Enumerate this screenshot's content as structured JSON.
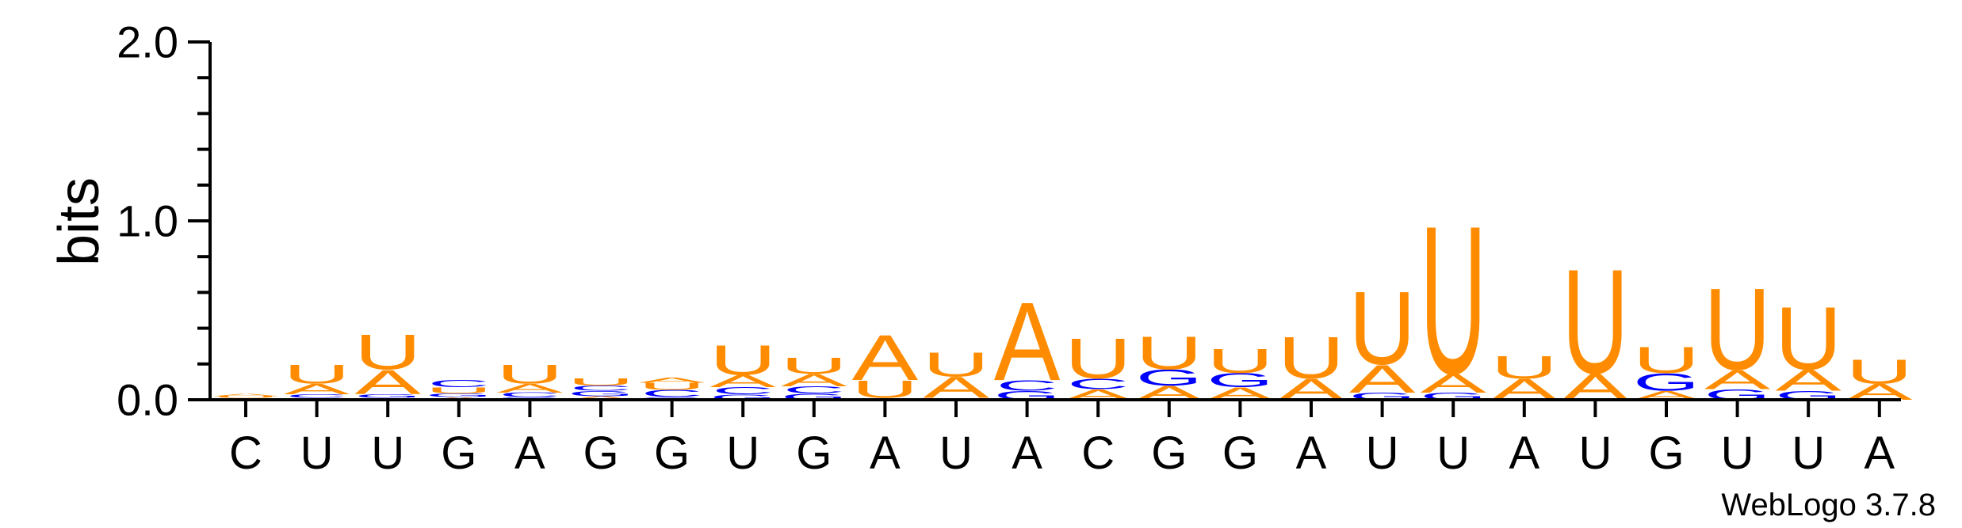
{
  "chart_data": {
    "type": "sequence_logo",
    "ylabel": "bits",
    "ylim": [
      0,
      2.0
    ],
    "yticks": [
      "0.0",
      "1.0",
      "2.0"
    ],
    "credit": "WebLogo 3.7.8",
    "colors": {
      "A": "#ff8c00",
      "U": "#ff8c00",
      "G": "#0000ff",
      "C": "#0000ff"
    },
    "positions": [
      {
        "label": "C",
        "stack": [
          [
            "C",
            0.01
          ],
          [
            "U",
            0.01
          ],
          [
            "A",
            0.015
          ]
        ]
      },
      {
        "label": "U",
        "stack": [
          [
            "G",
            0.01
          ],
          [
            "C",
            0.02
          ],
          [
            "A",
            0.06
          ],
          [
            "U",
            0.11
          ]
        ]
      },
      {
        "label": "U",
        "stack": [
          [
            "C",
            0.01
          ],
          [
            "G",
            0.02
          ],
          [
            "A",
            0.14
          ],
          [
            "U",
            0.2
          ]
        ]
      },
      {
        "label": "G",
        "stack": [
          [
            "A",
            0.015
          ],
          [
            "G",
            0.02
          ],
          [
            "U",
            0.035
          ],
          [
            "C",
            0.04
          ]
        ]
      },
      {
        "label": "A",
        "stack": [
          [
            "G",
            0.015
          ],
          [
            "C",
            0.025
          ],
          [
            "A",
            0.05
          ],
          [
            "U",
            0.11
          ]
        ]
      },
      {
        "label": "G",
        "stack": [
          [
            "A",
            0.02
          ],
          [
            "G",
            0.03
          ],
          [
            "C",
            0.03
          ],
          [
            "U",
            0.04
          ]
        ]
      },
      {
        "label": "G",
        "stack": [
          [
            "G",
            0.015
          ],
          [
            "C",
            0.04
          ],
          [
            "U",
            0.04
          ],
          [
            "A",
            0.03
          ]
        ]
      },
      {
        "label": "U",
        "stack": [
          [
            "G",
            0.03
          ],
          [
            "C",
            0.04
          ],
          [
            "A",
            0.07
          ],
          [
            "U",
            0.17
          ]
        ]
      },
      {
        "label": "G",
        "stack": [
          [
            "G",
            0.035
          ],
          [
            "C",
            0.04
          ],
          [
            "A",
            0.07
          ],
          [
            "U",
            0.09
          ]
        ]
      },
      {
        "label": "A",
        "stack": [
          [
            "G",
            0.01
          ],
          [
            "U",
            0.1
          ],
          [
            "A",
            0.26
          ]
        ]
      },
      {
        "label": "U",
        "stack": [
          [
            "G",
            0.01
          ],
          [
            "A",
            0.12
          ],
          [
            "U",
            0.14
          ]
        ]
      },
      {
        "label": "A",
        "stack": [
          [
            "G",
            0.05
          ],
          [
            "C",
            0.06
          ],
          [
            "A",
            0.45
          ]
        ]
      },
      {
        "label": "C",
        "stack": [
          [
            "A",
            0.06
          ],
          [
            "C",
            0.06
          ],
          [
            "U",
            0.23
          ]
        ]
      },
      {
        "label": "G",
        "stack": [
          [
            "A",
            0.08
          ],
          [
            "G",
            0.09
          ],
          [
            "U",
            0.19
          ]
        ]
      },
      {
        "label": "G",
        "stack": [
          [
            "A",
            0.07
          ],
          [
            "G",
            0.08
          ],
          [
            "U",
            0.14
          ]
        ]
      },
      {
        "label": "A",
        "stack": [
          [
            "A",
            0.12
          ],
          [
            "U",
            0.24
          ]
        ]
      },
      {
        "label": "U",
        "stack": [
          [
            "G",
            0.04
          ],
          [
            "A",
            0.16
          ],
          [
            "U",
            0.42
          ]
        ]
      },
      {
        "label": "U",
        "stack": [
          [
            "G",
            0.04
          ],
          [
            "A",
            0.11
          ],
          [
            "U",
            0.85
          ]
        ]
      },
      {
        "label": "A",
        "stack": [
          [
            "A",
            0.12
          ],
          [
            "U",
            0.13
          ]
        ]
      },
      {
        "label": "U",
        "stack": [
          [
            "A",
            0.15
          ],
          [
            "U",
            0.6
          ]
        ]
      },
      {
        "label": "G",
        "stack": [
          [
            "A",
            0.05
          ],
          [
            "G",
            0.1
          ],
          [
            "U",
            0.15
          ]
        ]
      },
      {
        "label": "U",
        "stack": [
          [
            "G",
            0.06
          ],
          [
            "A",
            0.11
          ],
          [
            "U",
            0.47
          ]
        ]
      },
      {
        "label": "U",
        "stack": [
          [
            "G",
            0.05
          ],
          [
            "A",
            0.12
          ],
          [
            "U",
            0.36
          ]
        ]
      },
      {
        "label": "A",
        "stack": [
          [
            "A",
            0.09
          ],
          [
            "U",
            0.14
          ]
        ]
      }
    ]
  }
}
